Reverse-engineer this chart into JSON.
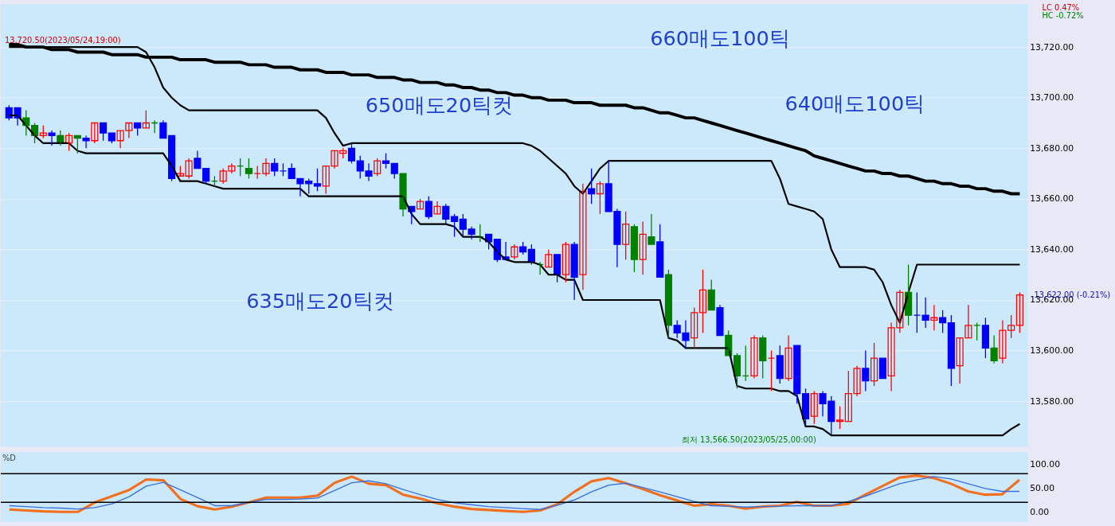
{
  "chart_data": [
    {
      "type": "candlestick",
      "categories": [
        null,
        null,
        null,
        null,
        null,
        null,
        null,
        null,
        null,
        null,
        null,
        null,
        null,
        null,
        null,
        null,
        null,
        null,
        null,
        null,
        null,
        null,
        null,
        null,
        null,
        null,
        null,
        null,
        null,
        null,
        null,
        null,
        null,
        null,
        null,
        null,
        null,
        null,
        null,
        null,
        null,
        null,
        null,
        null,
        null,
        null,
        null,
        null,
        null,
        null,
        null,
        null,
        null,
        null,
        null,
        null,
        null,
        null,
        null,
        null,
        null,
        null,
        null,
        null,
        null,
        null,
        null,
        null,
        null,
        null,
        null,
        null,
        null,
        null,
        null,
        null,
        null,
        null,
        null,
        null,
        null,
        null,
        null,
        null,
        null,
        null,
        null,
        null,
        null,
        null,
        null,
        null,
        null,
        null,
        null,
        null,
        null,
        null,
        null,
        null,
        null,
        null,
        null,
        null,
        null,
        null,
        null,
        null,
        null,
        null,
        null,
        null,
        null,
        null,
        null,
        null,
        null,
        null,
        null
      ],
      "ohlc": [
        [
          13696,
          13697,
          13691,
          13692
        ],
        [
          13696,
          13696,
          13689,
          13692
        ],
        [
          13692,
          13695,
          13685,
          13689
        ],
        [
          13689,
          13690,
          13682,
          13685
        ],
        [
          13685,
          13689,
          13684,
          13686
        ],
        [
          13686,
          13687,
          13681,
          13685
        ],
        [
          13685,
          13687,
          13681,
          13682
        ],
        [
          13682,
          13686,
          13679,
          13685
        ],
        [
          13685,
          13685,
          13678,
          13684
        ],
        [
          13684,
          13685,
          13680,
          13683
        ],
        [
          13683,
          13690,
          13682,
          13690
        ],
        [
          13690,
          13690,
          13683,
          13686
        ],
        [
          13686,
          13686,
          13682,
          13683
        ],
        [
          13683,
          13687,
          13680,
          13687
        ],
        [
          13687,
          13690,
          13684,
          13690
        ],
        [
          13690,
          13690,
          13685,
          13688
        ],
        [
          13688,
          13695,
          13688,
          13690
        ],
        [
          13690,
          13691,
          13686,
          13690
        ],
        [
          13690,
          13691,
          13684,
          13684
        ],
        [
          13685,
          13685,
          13667,
          13668
        ],
        [
          13669,
          13673,
          13669,
          13670
        ],
        [
          13669,
          13676,
          13668,
          13675
        ],
        [
          13676,
          13679,
          13672,
          13672
        ],
        [
          13672,
          13672,
          13666,
          13667
        ],
        [
          13667,
          13669,
          13665,
          13667
        ],
        [
          13667,
          13672,
          13666,
          13671
        ],
        [
          13671,
          13674,
          13670,
          13673
        ],
        [
          13673,
          13676,
          13669,
          13673
        ],
        [
          13672,
          13676,
          13668,
          13670
        ],
        [
          13670,
          13673,
          13668,
          13670
        ],
        [
          13670,
          13676,
          13669,
          13674
        ],
        [
          13674,
          13676,
          13669,
          13671
        ],
        [
          13671,
          13674,
          13669,
          13671
        ],
        [
          13672,
          13674,
          13668,
          13668
        ],
        [
          13668,
          13668,
          13661,
          13666
        ],
        [
          13667,
          13668,
          13662,
          13666
        ],
        [
          13666,
          13672,
          13663,
          13665
        ],
        [
          13665,
          13673,
          13662,
          13673
        ],
        [
          13673,
          13679,
          13672,
          13679
        ],
        [
          13678,
          13680,
          13676,
          13679
        ],
        [
          13680,
          13682,
          13674,
          13675
        ],
        [
          13675,
          13677,
          13668,
          13671
        ],
        [
          13671,
          13674,
          13667,
          13669
        ],
        [
          13670,
          13676,
          13669,
          13675
        ],
        [
          13675,
          13678,
          13672,
          13674
        ],
        [
          13674,
          13674,
          13668,
          13670
        ],
        [
          13670,
          13670,
          13653,
          13656
        ],
        [
          13657,
          13657,
          13650,
          13655
        ],
        [
          13656,
          13660,
          13656,
          13659
        ],
        [
          13659,
          13661,
          13652,
          13653
        ],
        [
          13654,
          13659,
          13654,
          13657
        ],
        [
          13657,
          13658,
          13650,
          13652
        ],
        [
          13653,
          13654,
          13645,
          13651
        ],
        [
          13652,
          13654,
          13645,
          13648
        ],
        [
          13648,
          13649,
          13644,
          13646
        ],
        [
          13645,
          13650,
          13643,
          13645
        ],
        [
          13646,
          13646,
          13640,
          13643
        ],
        [
          13644,
          13644,
          13635,
          13636
        ],
        [
          13637,
          13643,
          13636,
          13636
        ],
        [
          13637,
          13642,
          13636,
          13641
        ],
        [
          13641,
          13643,
          13638,
          13639
        ],
        [
          13640,
          13642,
          13634,
          13635
        ],
        [
          13634,
          13635,
          13630,
          13634
        ],
        [
          13633,
          13640,
          13633,
          13638
        ],
        [
          13638,
          13638,
          13627,
          13630
        ],
        [
          13630,
          13643,
          13627,
          13642
        ],
        [
          13642,
          13643,
          13620,
          13629
        ],
        [
          13630,
          13666,
          13624,
          13663
        ],
        [
          13664,
          13672,
          13658,
          13662
        ],
        [
          13662,
          13667,
          13654,
          13666
        ],
        [
          13666,
          13675,
          13655,
          13655
        ],
        [
          13655,
          13656,
          13633,
          13642
        ],
        [
          13642,
          13655,
          13636,
          13650
        ],
        [
          13649,
          13650,
          13631,
          13636
        ],
        [
          13636,
          13651,
          13630,
          13646
        ],
        [
          13645,
          13654,
          13642,
          13642
        ],
        [
          13643,
          13650,
          13629,
          13629
        ],
        [
          13630,
          13632,
          13605,
          13610
        ],
        [
          13610,
          13612,
          13605,
          13607
        ],
        [
          13607,
          13612,
          13601,
          13604
        ],
        [
          13605,
          13617,
          13601,
          13615
        ],
        [
          13615,
          13632,
          13607,
          13624
        ],
        [
          13624,
          13628,
          13616,
          13616
        ],
        [
          13617,
          13618,
          13606,
          13606
        ],
        [
          13606,
          13608,
          13598,
          13598
        ],
        [
          13598,
          13599,
          13585,
          13590
        ],
        [
          13590,
          13602,
          13588,
          13590
        ],
        [
          13590,
          13606,
          13589,
          13605
        ],
        [
          13605,
          13606,
          13589,
          13596
        ],
        [
          13597,
          13600,
          13584,
          13597
        ],
        [
          13598,
          13602,
          13587,
          13589
        ],
        [
          13589,
          13606,
          13588,
          13601
        ],
        [
          13602,
          13602,
          13579,
          13583
        ],
        [
          13583,
          13585,
          13570,
          13573
        ],
        [
          13574,
          13584,
          13571,
          13583
        ],
        [
          13583,
          13584,
          13574,
          13579
        ],
        [
          13580,
          13582,
          13566.5,
          13572
        ],
        [
          13572,
          13578,
          13569,
          13572.5
        ],
        [
          13572,
          13592,
          13572,
          13583
        ],
        [
          13583,
          13594,
          13582,
          13593
        ],
        [
          13593,
          13600,
          13584,
          13588
        ],
        [
          13588,
          13603,
          13586,
          13597
        ],
        [
          13597,
          13597,
          13589,
          13589
        ],
        [
          13590,
          13611,
          13584,
          13609
        ],
        [
          13609,
          13624,
          13607,
          13623
        ],
        [
          13623,
          13634,
          13610,
          13614
        ],
        [
          13614,
          13623,
          13607,
          13614
        ],
        [
          13614,
          13621,
          13609,
          13612
        ],
        [
          13612,
          13618,
          13608,
          13613
        ],
        [
          13613,
          13616,
          13607,
          13611
        ],
        [
          13611,
          13614,
          13586,
          13593
        ],
        [
          13594,
          13605,
          13587,
          13605
        ],
        [
          13605,
          13618,
          13605,
          13610
        ],
        [
          13610,
          13611,
          13604,
          13610
        ],
        [
          13610,
          13613,
          13597,
          13601
        ],
        [
          13601,
          13606,
          13595,
          13596
        ],
        [
          13597,
          13612,
          13595,
          13608
        ],
        [
          13608,
          13614,
          13605,
          13610
        ],
        [
          13610,
          13623,
          13607,
          13622
        ]
      ],
      "colors": [
        "#0000ff",
        "#0000ff",
        "#008000",
        "#008000",
        "#ff0000",
        "#0000ff",
        "#008000",
        "#ff0000",
        "#008000",
        "#0000ff",
        "#ff0000",
        "#0000ff",
        "#0000ff",
        "#ff0000",
        "#ff0000",
        "#0000ff",
        "#ff0000",
        "#008000",
        "#0000ff",
        "#0000ff",
        "#ff0000",
        "#ff0000",
        "#0000ff",
        "#0000ff",
        "#008000",
        "#ff0000",
        "#ff0000",
        "#008000",
        "#008000",
        "#ff0000",
        "#ff0000",
        "#0000ff",
        "#0000ff",
        "#0000ff",
        "#0000ff",
        "#0000ff",
        "#0000ff",
        "#ff0000",
        "#ff0000",
        "#ff0000",
        "#0000ff",
        "#0000ff",
        "#0000ff",
        "#ff0000",
        "#0000ff",
        "#0000ff",
        "#008000",
        "#0000ff",
        "#ff0000",
        "#0000ff",
        "#ff0000",
        "#0000ff",
        "#0000ff",
        "#0000ff",
        "#0000ff",
        "#008000",
        "#0000ff",
        "#0000ff",
        "#0000ff",
        "#ff0000",
        "#0000ff",
        "#0000ff",
        "#008000",
        "#ff0000",
        "#0000ff",
        "#ff0000",
        "#0000ff",
        "#ff0000",
        "#0000ff",
        "#ff0000",
        "#0000ff",
        "#0000ff",
        "#ff0000",
        "#008000",
        "#ff0000",
        "#008000",
        "#0000ff",
        "#008000",
        "#0000ff",
        "#0000ff",
        "#ff0000",
        "#ff0000",
        "#008000",
        "#0000ff",
        "#008000",
        "#008000",
        "#008000",
        "#ff0000",
        "#008000",
        "#ff0000",
        "#0000ff",
        "#ff0000",
        "#0000ff",
        "#0000ff",
        "#ff0000",
        "#0000ff",
        "#0000ff",
        "#ff0000",
        "#ff0000",
        "#ff0000",
        "#0000ff",
        "#ff0000",
        "#0000ff",
        "#ff0000",
        "#ff0000",
        "#008000",
        "#0000ff",
        "#0000ff",
        "#ff0000",
        "#0000ff",
        "#0000ff",
        "#ff0000",
        "#ff0000",
        "#008000",
        "#0000ff",
        "#008000",
        "#ff0000",
        "#ff0000",
        "#ff0000"
      ],
      "series": [
        {
          "type": "line",
          "color": "#000000",
          "values": [
            13720,
            13720,
            13720,
            13720,
            13720,
            13720,
            13720,
            13720,
            13720,
            13720,
            13720,
            13720,
            13720,
            13720,
            13720,
            13720,
            13718,
            13712,
            13704,
            13700,
            13697,
            13695,
            13695,
            13695,
            13695,
            13695,
            13695,
            13695,
            13695,
            13695,
            13695,
            13695,
            13695,
            13695,
            13695,
            13695,
            13695,
            13692,
            13686,
            13681,
            13682,
            13682,
            13682,
            13682,
            13682,
            13682,
            13682,
            13682,
            13682,
            13682,
            13682,
            13682,
            13682,
            13682,
            13682,
            13682,
            13682,
            13682,
            13682,
            13682,
            13682,
            13681,
            13679,
            13676,
            13673,
            13670,
            13665,
            13662,
            13667,
            13672,
            13675,
            13675,
            13675,
            13675,
            13675,
            13675,
            13675,
            13675,
            13675,
            13675,
            13675,
            13675,
            13675,
            13675,
            13675,
            13675,
            13675,
            13675,
            13675,
            13675,
            13668,
            13658,
            13657,
            13656,
            13655,
            13652,
            13640,
            13633,
            13633,
            13633,
            13633,
            13632,
            13627,
            13618,
            13611,
            13623,
            13634,
            13634,
            13634,
            13634,
            13634,
            13634,
            13634,
            13634,
            13634,
            13634,
            13634,
            13634,
            13634
          ]
        },
        {
          "type": "line",
          "color": "#000000",
          "values": [
            13693,
            13693,
            13689,
            13685,
            13682,
            13682,
            13682,
            13682,
            13679,
            13678,
            13678,
            13678,
            13678,
            13678,
            13678,
            13678,
            13678,
            13678,
            13678,
            13673,
            13667,
            13667,
            13667,
            13666,
            13665,
            13664,
            13664,
            13664,
            13664,
            13664,
            13664,
            13664,
            13664,
            13664,
            13664,
            13661,
            13661,
            13661,
            13661,
            13661,
            13661,
            13661,
            13661,
            13661,
            13661,
            13661,
            13661,
            13654,
            13650,
            13650,
            13650,
            13650,
            13649,
            13645,
            13645,
            13645,
            13643,
            13639,
            13636,
            13635,
            13635,
            13635,
            13634,
            13630,
            13630,
            13628,
            13628,
            13620,
            13620,
            13620,
            13620,
            13620,
            13620,
            13620,
            13620,
            13620,
            13620,
            13605,
            13604,
            13601,
            13601,
            13601,
            13601,
            13601,
            13601,
            13586,
            13585,
            13585,
            13585,
            13585,
            13584,
            13584,
            13582,
            13570,
            13570,
            13569,
            13566.5,
            13566.5,
            13566.5,
            13566.5,
            13566.5,
            13566.5,
            13566.5,
            13566.5,
            13566.5,
            13566.5,
            13566.5,
            13566.5,
            13566.5,
            13566.5,
            13566.5,
            13566.5,
            13566.5,
            13566.5,
            13566.5,
            13566.5,
            13566.5,
            13569,
            13571
          ]
        },
        {
          "type": "line",
          "color": "#000000",
          "values": [
            13721,
            13721,
            13720,
            13720,
            13720,
            13719,
            13719,
            13719,
            13718,
            13718,
            13718,
            13718,
            13717,
            13717,
            13717,
            13717,
            13716,
            13716,
            13716,
            13716,
            13715,
            13715,
            13715,
            13715,
            13714,
            13714,
            13714,
            13714,
            13713,
            13713,
            13713,
            13712,
            13712,
            13712,
            13711,
            13711,
            13711,
            13710,
            13710,
            13710,
            13709,
            13709,
            13709,
            13708,
            13708,
            13708,
            13707,
            13707,
            13706,
            13706,
            13706,
            13705,
            13705,
            13704,
            13704,
            13703,
            13703,
            13702,
            13702,
            13701,
            13701,
            13700,
            13700,
            13699,
            13699,
            13699,
            13698,
            13698,
            13698,
            13697,
            13697,
            13697,
            13697,
            13696,
            13696,
            13695,
            13694,
            13694,
            13693,
            13692,
            13692,
            13691,
            13690,
            13689,
            13688,
            13687,
            13686,
            13685,
            13684,
            13683,
            13682,
            13681,
            13680,
            13679,
            13677,
            13676,
            13675,
            13674,
            13673,
            13672,
            13671,
            13671,
            13670,
            13670,
            13669,
            13669,
            13668,
            13667,
            13667,
            13666,
            13666,
            13665,
            13665,
            13664,
            13664,
            13663,
            13663,
            13662,
            13662
          ]
        }
      ],
      "ylim": [
        13562,
        13737
      ],
      "yticks": [
        {
          "value": 13580,
          "label": "13,580.00"
        },
        {
          "value": 13600,
          "label": "13,600.00"
        },
        {
          "value": 13620,
          "label": "13,620.00"
        },
        {
          "value": 13640,
          "label": "13,640.00"
        },
        {
          "value": 13660,
          "label": "13,660.00"
        },
        {
          "value": 13680,
          "label": "13,680.00"
        },
        {
          "value": 13700,
          "label": "13,700.00"
        },
        {
          "value": 13720,
          "label": "13,720.00"
        }
      ],
      "grid": "y",
      "tick_labels": "y",
      "annotations": [
        "13,720.50(2023/05/24,19:00)",
        "650매도20틱컷",
        "660매도100틱",
        "640매도100틱",
        "635매도20틱컷",
        "최저 13,566.50(2023/05/25,00:00)",
        "13,622.00 (-0.21%)",
        "LC 0.47%",
        "HC -0.72%"
      ]
    },
    {
      "type": "line",
      "categories": [
        null,
        null,
        null,
        null,
        null,
        null,
        null,
        null,
        null,
        null,
        null,
        null,
        null,
        null,
        null,
        null,
        null,
        null,
        null,
        null,
        null,
        null,
        null,
        null,
        null,
        null,
        null,
        null,
        null,
        null,
        null,
        null,
        null,
        null,
        null,
        null,
        null,
        null,
        null,
        null,
        null,
        null,
        null,
        null,
        null,
        null,
        null,
        null,
        null,
        null,
        null,
        null,
        null,
        null,
        null,
        null,
        null,
        null,
        null,
        null
      ],
      "series": [
        {
          "color": "#f07020",
          "values": [
            5,
            3,
            1,
            0,
            0,
            20,
            33,
            46,
            68,
            66,
            27,
            12,
            5,
            11,
            20,
            30,
            30,
            30,
            34,
            61,
            74,
            59,
            56,
            36,
            28,
            18,
            11,
            6,
            4,
            2,
            0,
            3,
            16,
            42,
            64,
            71,
            60,
            48,
            35,
            24,
            13,
            16,
            13,
            7,
            11,
            13,
            21,
            13,
            13,
            17,
            36,
            54,
            72,
            76,
            71,
            59,
            43,
            36,
            37,
            67
          ]
        },
        {
          "color": "#3a70e0",
          "values": [
            13,
            11,
            9,
            8,
            6,
            9,
            17,
            32,
            54,
            62,
            46,
            30,
            13,
            13,
            20,
            26,
            26,
            27,
            29,
            45,
            61,
            65,
            59,
            47,
            36,
            26,
            19,
            15,
            11,
            9,
            7,
            5,
            14,
            25,
            42,
            56,
            60,
            51,
            42,
            32,
            22,
            13,
            12,
            10,
            11,
            12,
            13,
            13,
            13,
            22,
            33,
            46,
            59,
            67,
            74,
            69,
            59,
            49,
            43,
            43
          ]
        }
      ],
      "ylim": [
        -21,
        125
      ],
      "yticks": [
        {
          "value": 0,
          "label": "0.00"
        },
        {
          "value": 50,
          "label": "50.00"
        },
        {
          "value": 100,
          "label": "100.00"
        }
      ],
      "ref_lines": [
        {
          "axis": "y",
          "value": 80,
          "color": "#000000"
        },
        {
          "axis": "y",
          "value": 20,
          "color": "#000000"
        }
      ],
      "tick_labels": "y",
      "annotations": [
        "%D"
      ]
    }
  ]
}
